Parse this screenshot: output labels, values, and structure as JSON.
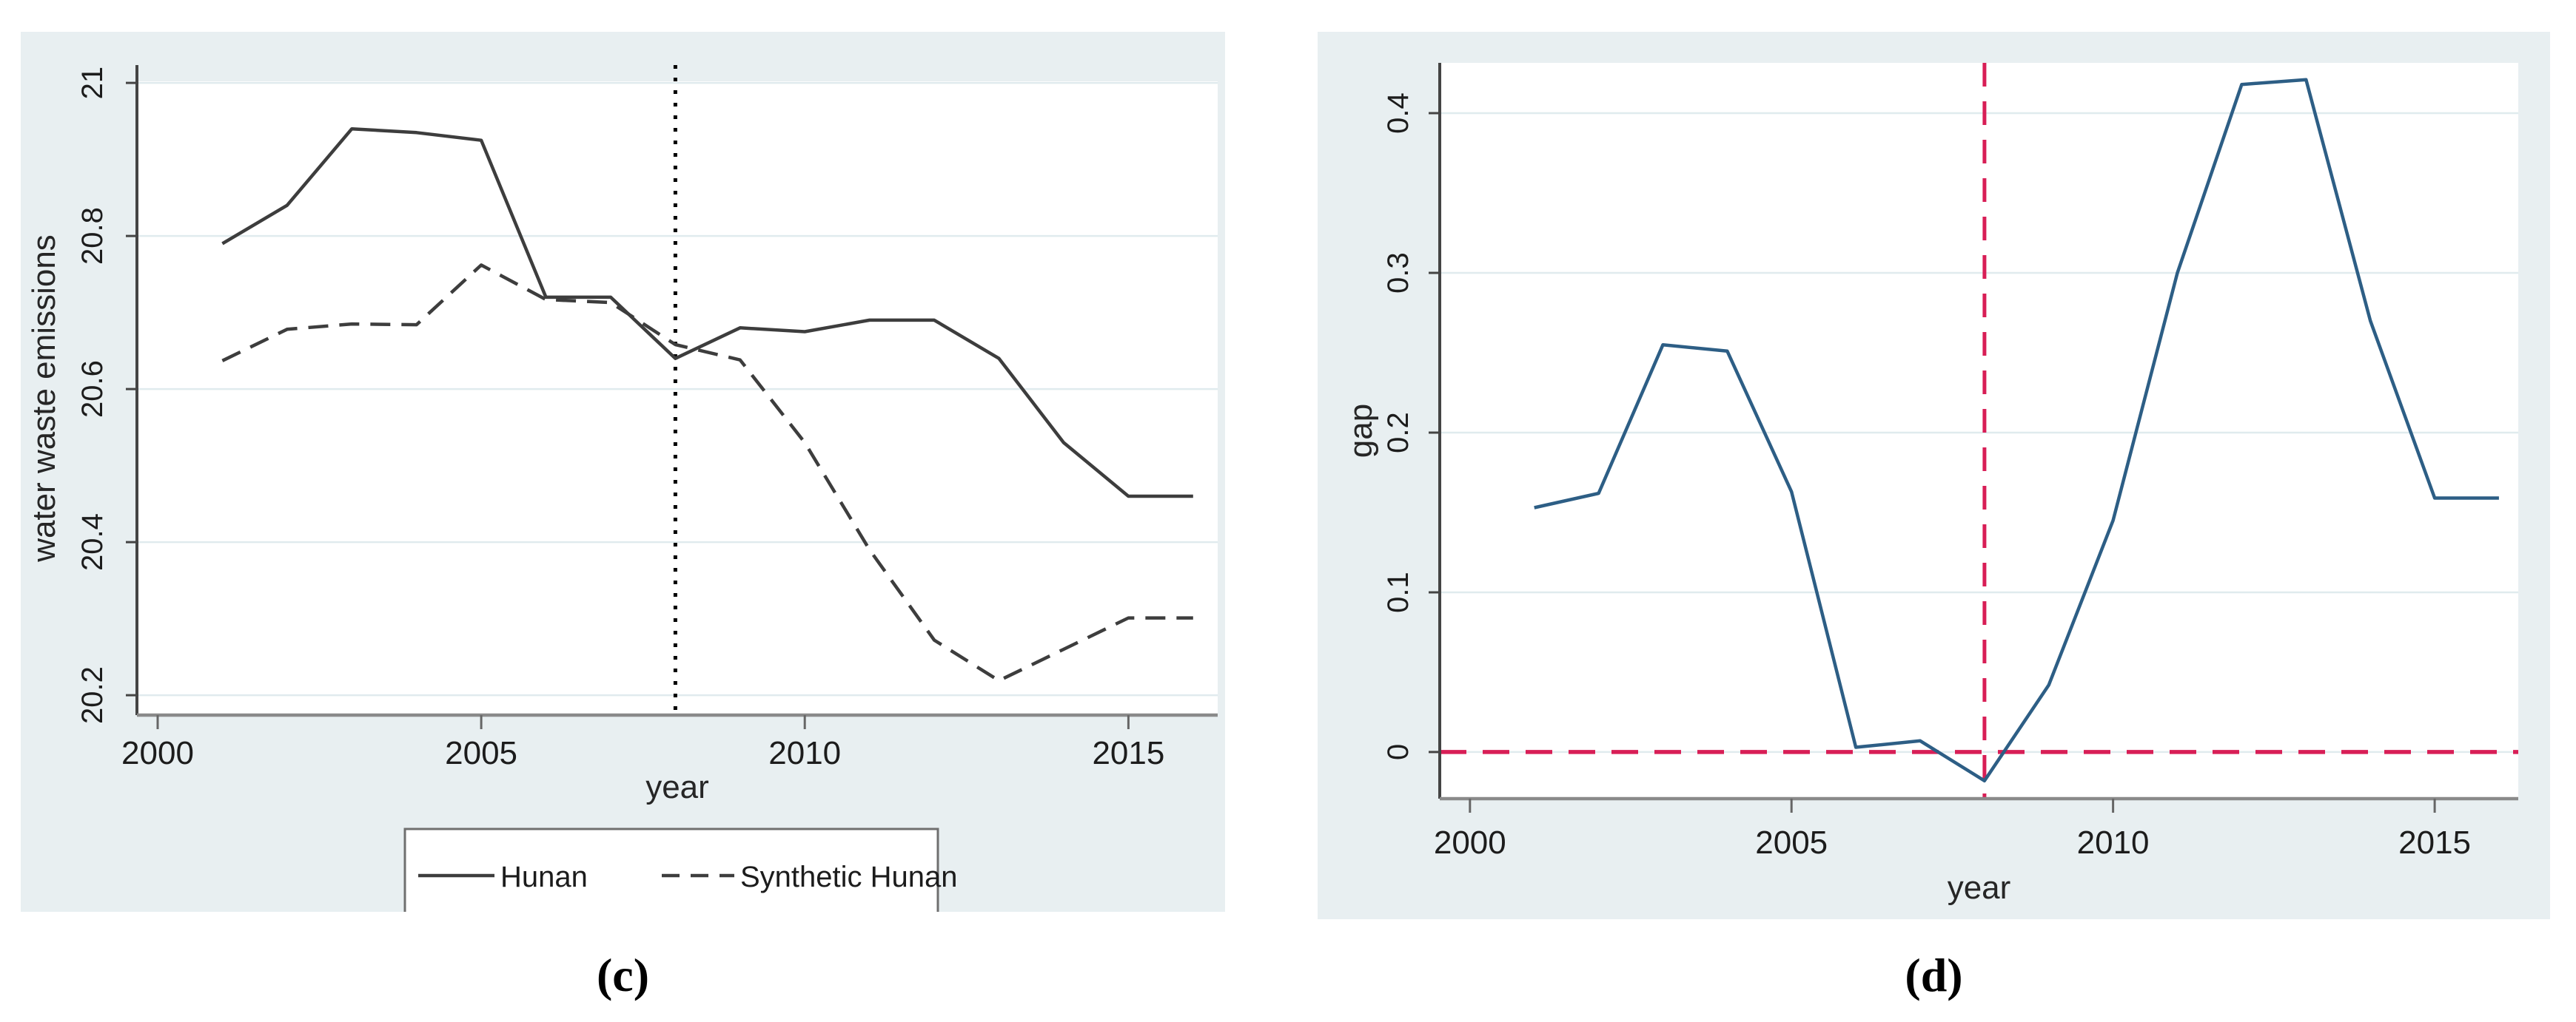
{
  "figure": {
    "panel_background": "#e8eff1",
    "plot_background": "#ffffff",
    "gridline_color": "#e0ebee",
    "y_axis_color": "#444444",
    "x_axis_color": "#8a8a8a",
    "tick_text_color": "#1c1c1c",
    "caption_c": "(c)",
    "caption_d": "(d)"
  },
  "chart_data": [
    {
      "id": "c",
      "type": "line",
      "caption": "(c)",
      "title": "",
      "xlabel": "year",
      "ylabel": "water waste emissions",
      "x": [
        2001,
        2002,
        2003,
        2004,
        2005,
        2006,
        2007,
        2008,
        2009,
        2010,
        2011,
        2012,
        2013,
        2014,
        2015,
        2016
      ],
      "series": [
        {
          "name": "Hunan",
          "style": "solid",
          "color": "#3d3d3d",
          "values": [
            20.79,
            20.84,
            20.94,
            20.935,
            20.925,
            20.72,
            20.72,
            20.64,
            20.68,
            20.675,
            20.69,
            20.69,
            20.64,
            20.53,
            20.46,
            20.46
          ]
        },
        {
          "name": "Synthetic Hunan",
          "style": "dashed",
          "color": "#3d3d3d",
          "values": [
            20.637,
            20.678,
            20.685,
            20.684,
            20.762,
            20.717,
            20.713,
            20.658,
            20.638,
            20.53,
            20.39,
            20.272,
            20.219,
            20.26,
            20.301,
            20.301
          ]
        }
      ],
      "xticks": [
        2000,
        2005,
        2010,
        2015
      ],
      "yticks": [
        20.2,
        20.4,
        20.6,
        20.8,
        21
      ],
      "ytick_labels": [
        "20.2",
        "20.4",
        "20.6",
        "20.8",
        "21"
      ],
      "xlim": [
        1999.68,
        2016.38
      ],
      "ylim": [
        20.174,
        21.002
      ],
      "grid": true,
      "vline": {
        "x": 2008,
        "style": "dotted",
        "color": "#000000",
        "label": "treatment-year-2008"
      },
      "legend": {
        "position": "bottom",
        "items": [
          "Hunan",
          "Synthetic Hunan"
        ]
      }
    },
    {
      "id": "d",
      "type": "line",
      "caption": "(d)",
      "title": "",
      "xlabel": "year",
      "ylabel": "gap",
      "x": [
        2001,
        2002,
        2003,
        2004,
        2005,
        2006,
        2007,
        2008,
        2009,
        2010,
        2011,
        2012,
        2013,
        2014,
        2015,
        2016
      ],
      "series": [
        {
          "name": "gap",
          "style": "solid",
          "color": "#2d5e85",
          "values": [
            0.153,
            0.162,
            0.255,
            0.251,
            0.163,
            0.003,
            0.007,
            -0.018,
            0.042,
            0.145,
            0.3,
            0.418,
            0.421,
            0.27,
            0.159,
            0.159
          ]
        }
      ],
      "xticks": [
        2000,
        2005,
        2010,
        2015
      ],
      "yticks": [
        0,
        0.1,
        0.2,
        0.3,
        0.4
      ],
      "ytick_labels": [
        "0",
        "0.1",
        "0.2",
        "0.3",
        "0.4"
      ],
      "xlim": [
        1999.53,
        2016.3
      ],
      "ylim": [
        -0.0292,
        0.4315
      ],
      "grid": true,
      "vline": {
        "x": 2008,
        "style": "dashed",
        "color": "#d81e56",
        "label": "treatment-year-2008"
      },
      "hline": {
        "y": 0,
        "style": "dashed",
        "color": "#d81e56",
        "label": "zero-gap-reference"
      }
    }
  ]
}
